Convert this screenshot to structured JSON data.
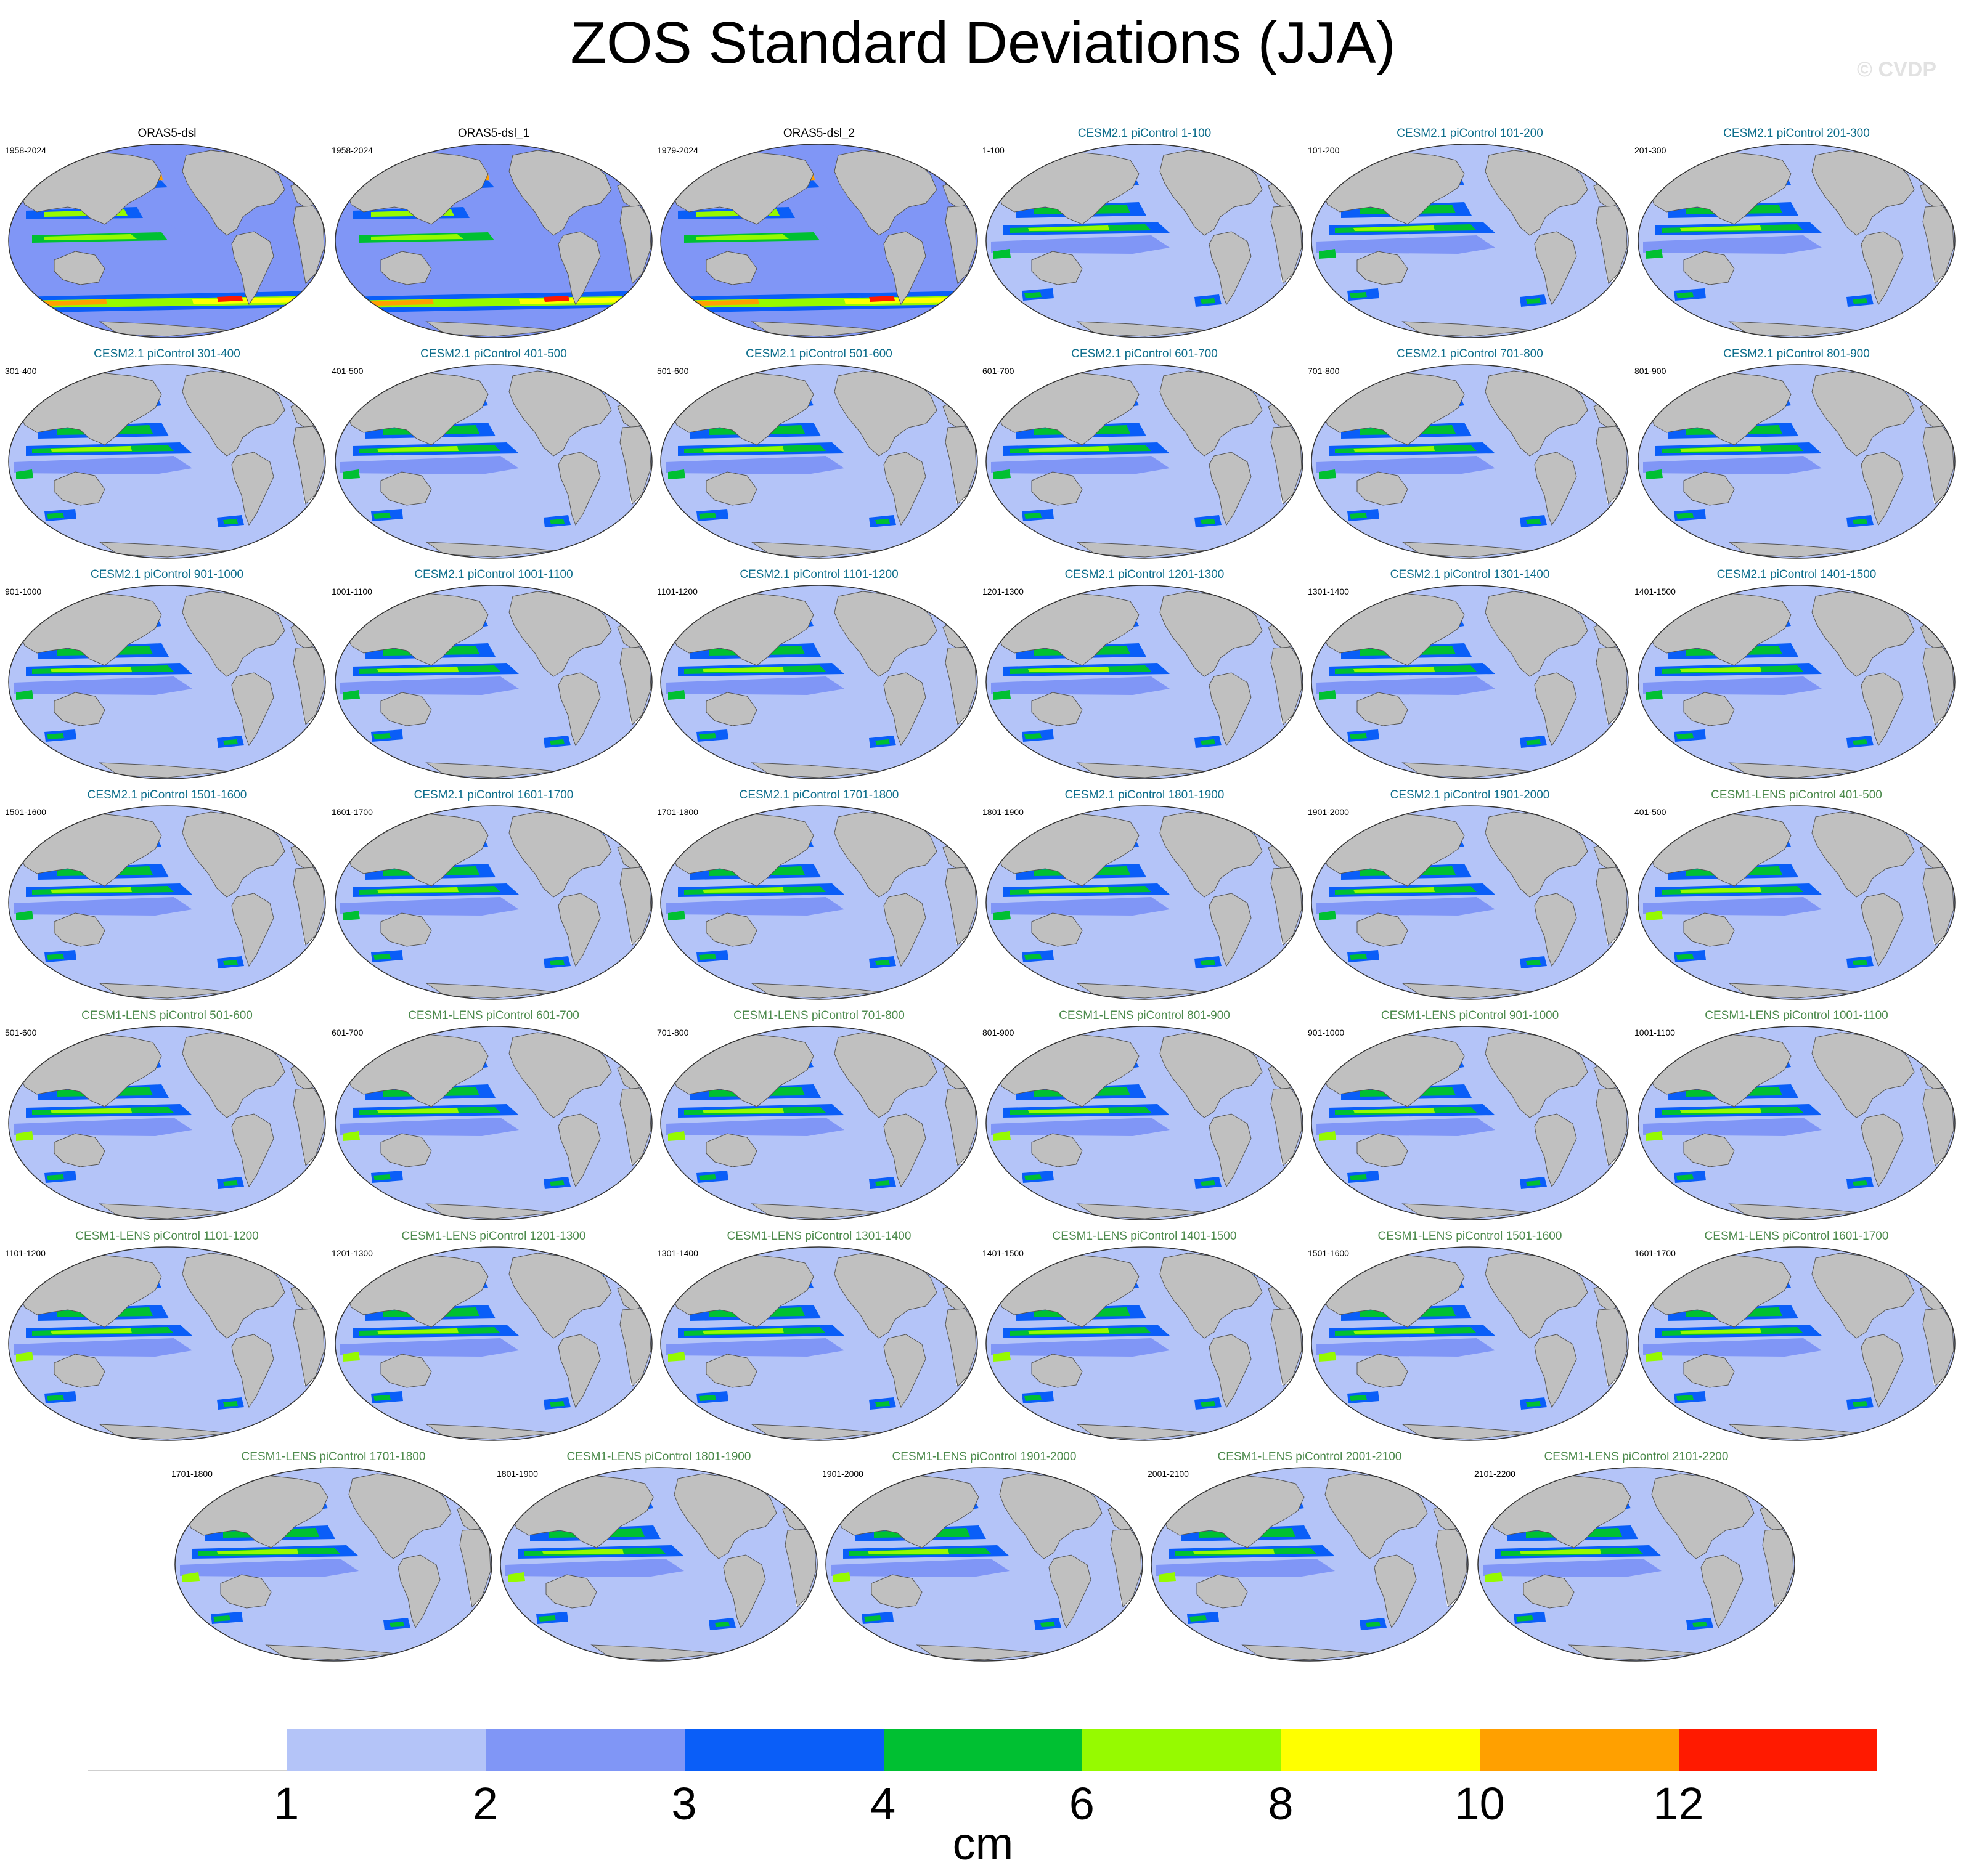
{
  "title": "ZOS Standard Deviations (JJA)",
  "watermark": "© CVDP",
  "colors": {
    "land": "#c0c0c0",
    "legend": [
      "#ffffff",
      "#b4c4f8",
      "#8096f6",
      "#0a5ef8",
      "#00c032",
      "#96fa00",
      "#ffff00",
      "#ffa000",
      "#ff1a00"
    ],
    "title_obs": "#000000",
    "title_cesm2": "#0e6e8c",
    "title_cesm1": "#4c8a4c"
  },
  "panels": [
    {
      "title": "ORAS5-dsl",
      "years": "1958-2024",
      "group": "obs"
    },
    {
      "title": "ORAS5-dsl_1",
      "years": "1958-2024",
      "group": "obs"
    },
    {
      "title": "ORAS5-dsl_2",
      "years": "1979-2024",
      "group": "obs"
    },
    {
      "title": "CESM2.1 piControl 1-100",
      "years": "1-100",
      "group": "c2"
    },
    {
      "title": "CESM2.1 piControl 101-200",
      "years": "101-200",
      "group": "c2"
    },
    {
      "title": "CESM2.1 piControl 201-300",
      "years": "201-300",
      "group": "c2"
    },
    {
      "title": "CESM2.1 piControl 301-400",
      "years": "301-400",
      "group": "c2"
    },
    {
      "title": "CESM2.1 piControl 401-500",
      "years": "401-500",
      "group": "c2"
    },
    {
      "title": "CESM2.1 piControl 501-600",
      "years": "501-600",
      "group": "c2"
    },
    {
      "title": "CESM2.1 piControl 601-700",
      "years": "601-700",
      "group": "c2"
    },
    {
      "title": "CESM2.1 piControl 701-800",
      "years": "701-800",
      "group": "c2"
    },
    {
      "title": "CESM2.1 piControl 801-900",
      "years": "801-900",
      "group": "c2"
    },
    {
      "title": "CESM2.1 piControl 901-1000",
      "years": "901-1000",
      "group": "c2"
    },
    {
      "title": "CESM2.1 piControl 1001-1100",
      "years": "1001-1100",
      "group": "c2"
    },
    {
      "title": "CESM2.1 piControl 1101-1200",
      "years": "1101-1200",
      "group": "c2"
    },
    {
      "title": "CESM2.1 piControl 1201-1300",
      "years": "1201-1300",
      "group": "c2"
    },
    {
      "title": "CESM2.1 piControl 1301-1400",
      "years": "1301-1400",
      "group": "c2"
    },
    {
      "title": "CESM2.1 piControl 1401-1500",
      "years": "1401-1500",
      "group": "c2"
    },
    {
      "title": "CESM2.1 piControl 1501-1600",
      "years": "1501-1600",
      "group": "c2"
    },
    {
      "title": "CESM2.1 piControl 1601-1700",
      "years": "1601-1700",
      "group": "c2"
    },
    {
      "title": "CESM2.1 piControl 1701-1800",
      "years": "1701-1800",
      "group": "c2"
    },
    {
      "title": "CESM2.1 piControl 1801-1900",
      "years": "1801-1900",
      "group": "c2"
    },
    {
      "title": "CESM2.1 piControl 1901-2000",
      "years": "1901-2000",
      "group": "c2"
    },
    {
      "title": "CESM1-LENS piControl 401-500",
      "years": "401-500",
      "group": "c1"
    },
    {
      "title": "CESM1-LENS piControl 501-600",
      "years": "501-600",
      "group": "c1"
    },
    {
      "title": "CESM1-LENS piControl 601-700",
      "years": "601-700",
      "group": "c1"
    },
    {
      "title": "CESM1-LENS piControl 701-800",
      "years": "701-800",
      "group": "c1"
    },
    {
      "title": "CESM1-LENS piControl 801-900",
      "years": "801-900",
      "group": "c1"
    },
    {
      "title": "CESM1-LENS piControl 901-1000",
      "years": "901-1000",
      "group": "c1"
    },
    {
      "title": "CESM1-LENS piControl 1001-1100",
      "years": "1001-1100",
      "group": "c1"
    },
    {
      "title": "CESM1-LENS piControl 1101-1200",
      "years": "1101-1200",
      "group": "c1"
    },
    {
      "title": "CESM1-LENS piControl 1201-1300",
      "years": "1201-1300",
      "group": "c1"
    },
    {
      "title": "CESM1-LENS piControl 1301-1400",
      "years": "1301-1400",
      "group": "c1"
    },
    {
      "title": "CESM1-LENS piControl 1401-1500",
      "years": "1401-1500",
      "group": "c1"
    },
    {
      "title": "CESM1-LENS piControl 1501-1600",
      "years": "1501-1600",
      "group": "c1"
    },
    {
      "title": "CESM1-LENS piControl 1601-1700",
      "years": "1601-1700",
      "group": "c1"
    },
    {
      "title": "CESM1-LENS piControl 1701-1800",
      "years": "1701-1800",
      "group": "c1"
    },
    {
      "title": "CESM1-LENS piControl 1801-1900",
      "years": "1801-1900",
      "group": "c1"
    },
    {
      "title": "CESM1-LENS piControl 1901-2000",
      "years": "1901-2000",
      "group": "c1"
    },
    {
      "title": "CESM1-LENS piControl 2001-2100",
      "years": "2001-2100",
      "group": "c1"
    },
    {
      "title": "CESM1-LENS piControl 2101-2200",
      "years": "2101-2200",
      "group": "c1"
    }
  ],
  "colorbar": {
    "ticks": [
      "1",
      "2",
      "3",
      "4",
      "6",
      "8",
      "10",
      "12"
    ],
    "unit": "cm"
  }
}
